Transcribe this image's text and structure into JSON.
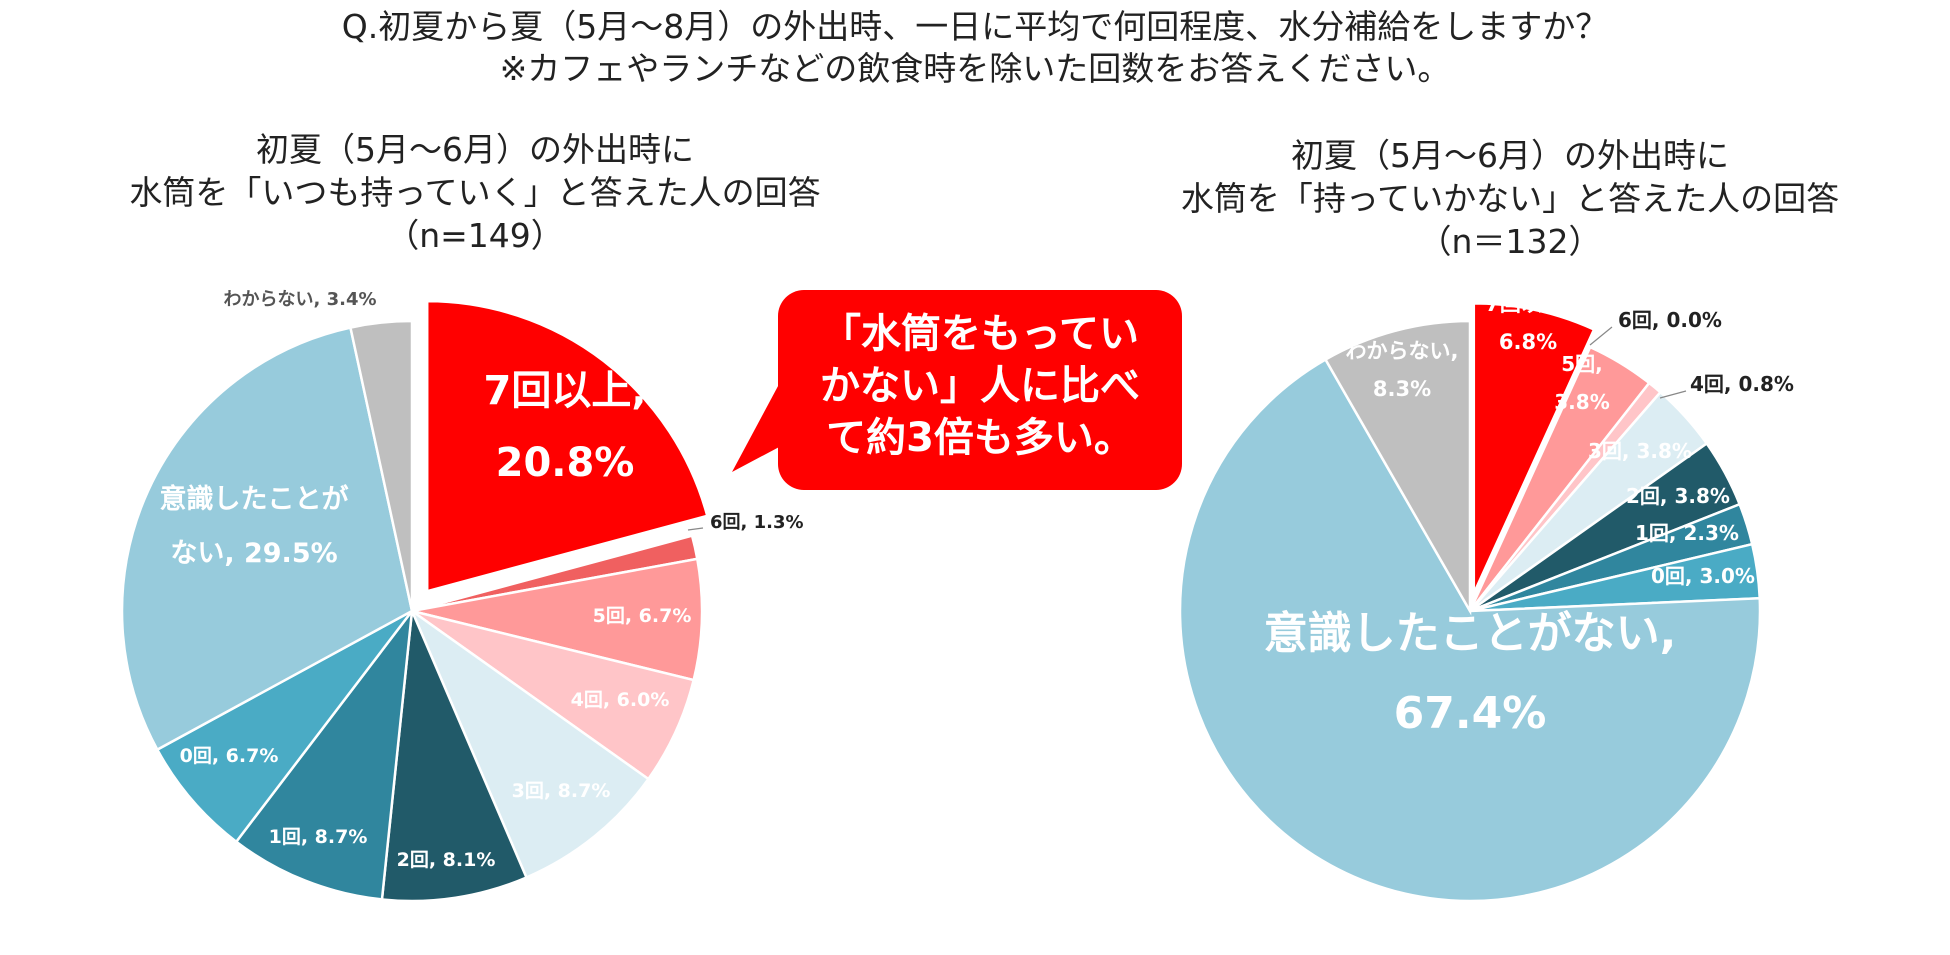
{
  "title": {
    "line1": "Q.初夏から夏（5月～8月）の外出時、一日に平均で何回程度、水分補給をしますか？",
    "line2": "※カフェやランチなどの飲食時を除いた回数をお答えください。"
  },
  "callout": {
    "line1": "「水筒をもってい",
    "line2": "かない」人に比べ",
    "line3": "て約3倍も多い。"
  },
  "chart_data": [
    {
      "type": "pie",
      "title": [
        "初夏（5月～6月）の外出時に",
        "水筒を「いつも持っていく」と答えた人の回答",
        "（n=149）"
      ],
      "unit": "%",
      "slices": [
        {
          "label": "7回以上",
          "value": 20.8,
          "color": "#ff0000",
          "display": "7回以上,|20.8%"
        },
        {
          "label": "6回",
          "value": 1.3,
          "color": "#f06060",
          "display": "6回, 1.3%"
        },
        {
          "label": "5回",
          "value": 6.7,
          "color": "#ff9999",
          "display": "5回, 6.7%"
        },
        {
          "label": "4回",
          "value": 6.0,
          "color": "#ffc5c8",
          "display": "4回, 6.0%"
        },
        {
          "label": "3回",
          "value": 8.7,
          "color": "#dcedf3",
          "display": "3回, 8.7%"
        },
        {
          "label": "2回",
          "value": 8.1,
          "color": "#215a69",
          "display": "2回, 8.1%"
        },
        {
          "label": "1回",
          "value": 8.7,
          "color": "#30869e",
          "display": "1回, 8.7%"
        },
        {
          "label": "0回",
          "value": 6.7,
          "color": "#4aabc5",
          "display": "0回, 6.7%"
        },
        {
          "label": "意識したことがない",
          "value": 29.5,
          "color": "#97cbdc",
          "display": "意識したことが|ない, 29.5%"
        },
        {
          "label": "わからない",
          "value": 3.4,
          "color": "#bfbfbf",
          "display": "わからない, 3.4%"
        }
      ]
    },
    {
      "type": "pie",
      "title": [
        "初夏（5月～6月）の外出時に",
        "水筒を「持っていかない」と答えた人の回答",
        "（n＝132）"
      ],
      "unit": "%",
      "slices": [
        {
          "label": "7回以上",
          "value": 6.8,
          "color": "#ff0000",
          "display": "7回以上,|6.8%"
        },
        {
          "label": "6回",
          "value": 0.0,
          "color": "#f06060",
          "display": "6回, 0.0%"
        },
        {
          "label": "5回",
          "value": 3.8,
          "color": "#ff9999",
          "display": "5回,|3.8%"
        },
        {
          "label": "4回",
          "value": 0.8,
          "color": "#ffc5c8",
          "display": "4回, 0.8%"
        },
        {
          "label": "3回",
          "value": 3.8,
          "color": "#dcedf3",
          "display": "3回, 3.8%"
        },
        {
          "label": "2回",
          "value": 3.8,
          "color": "#215a69",
          "display": "2回, 3.8%"
        },
        {
          "label": "1回",
          "value": 2.3,
          "color": "#30869e",
          "display": "1回, 2.3%"
        },
        {
          "label": "0回",
          "value": 3.0,
          "color": "#4aabc5",
          "display": "0回, 3.0%"
        },
        {
          "label": "意識したことがない",
          "value": 67.4,
          "color": "#97cbdc",
          "display": "意識したことがない,|67.4%"
        },
        {
          "label": "わからない",
          "value": 8.3,
          "color": "#bfbfbf",
          "display": "わからない,|8.3%"
        }
      ]
    }
  ]
}
